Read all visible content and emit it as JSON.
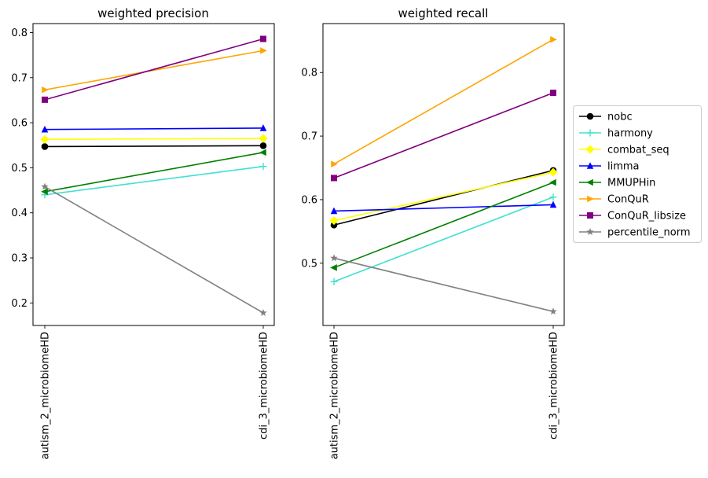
{
  "chart_data": [
    {
      "type": "line",
      "title": "weighted precision",
      "categories": [
        "autism_2_microbiomeHD",
        "cdi_3_microbiomeHD"
      ],
      "ylim": [
        0.15,
        0.82
      ],
      "yticks": [
        0.2,
        0.3,
        0.4,
        0.5,
        0.6,
        0.7,
        0.8
      ],
      "ytick_labels": [
        "0.2",
        "0.3",
        "0.4",
        "0.5",
        "0.6",
        "0.7",
        "0.8"
      ],
      "grid": false,
      "series": [
        {
          "name": "nobc",
          "values": [
            0.547,
            0.549
          ]
        },
        {
          "name": "harmony",
          "values": [
            0.44,
            0.503
          ]
        },
        {
          "name": "combat_seq",
          "values": [
            0.563,
            0.565
          ]
        },
        {
          "name": "limma",
          "values": [
            0.585,
            0.588
          ]
        },
        {
          "name": "MMUPHin",
          "values": [
            0.447,
            0.534
          ]
        },
        {
          "name": "ConQuR",
          "values": [
            0.673,
            0.76
          ]
        },
        {
          "name": "ConQuR_libsize",
          "values": [
            0.651,
            0.786
          ]
        },
        {
          "name": "percentile_norm",
          "values": [
            0.458,
            0.178
          ]
        }
      ]
    },
    {
      "type": "line",
      "title": "weighted recall",
      "categories": [
        "autism_2_microbiomeHD",
        "cdi_3_microbiomeHD"
      ],
      "ylim": [
        0.402,
        0.877
      ],
      "yticks": [
        0.5,
        0.6,
        0.7,
        0.8
      ],
      "ytick_labels": [
        "0.5",
        "0.6",
        "0.7",
        "0.8"
      ],
      "grid": false,
      "series": [
        {
          "name": "nobc",
          "values": [
            0.56,
            0.646
          ]
        },
        {
          "name": "harmony",
          "values": [
            0.471,
            0.604
          ]
        },
        {
          "name": "combat_seq",
          "values": [
            0.567,
            0.643
          ]
        },
        {
          "name": "limma",
          "values": [
            0.582,
            0.592
          ]
        },
        {
          "name": "MMUPHin",
          "values": [
            0.493,
            0.627
          ]
        },
        {
          "name": "ConQuR",
          "values": [
            0.656,
            0.852
          ]
        },
        {
          "name": "ConQuR_libsize",
          "values": [
            0.634,
            0.768
          ]
        },
        {
          "name": "percentile_norm",
          "values": [
            0.508,
            0.424
          ]
        }
      ]
    }
  ],
  "legend": {
    "placement": "right",
    "entries": [
      {
        "name": "nobc",
        "color": "#000000",
        "marker": "circle"
      },
      {
        "name": "harmony",
        "color": "#40e0d0",
        "marker": "plus"
      },
      {
        "name": "combat_seq",
        "color": "#ffff00",
        "marker": "diamond"
      },
      {
        "name": "limma",
        "color": "#0000ff",
        "marker": "triangle-up"
      },
      {
        "name": "MMUPHin",
        "color": "#008000",
        "marker": "triangle-left"
      },
      {
        "name": "ConQuR",
        "color": "#ffa500",
        "marker": "triangle-right"
      },
      {
        "name": "ConQuR_libsize",
        "color": "#800080",
        "marker": "square"
      },
      {
        "name": "percentile_norm",
        "color": "#808080",
        "marker": "star"
      }
    ]
  }
}
